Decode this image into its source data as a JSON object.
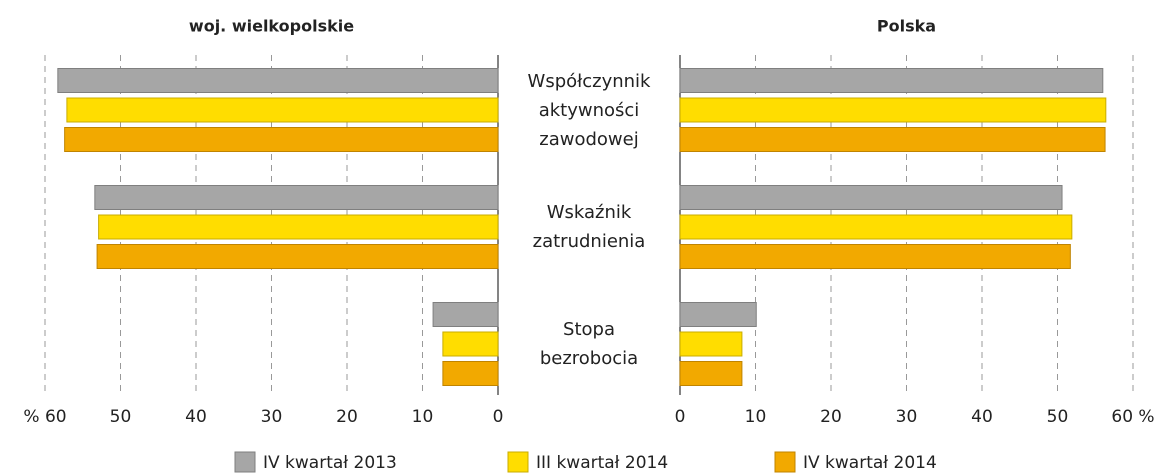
{
  "chart_data": [
    {
      "type": "bar",
      "orientation": "horizontal",
      "reversed": true,
      "title": "woj. wielkopolskie",
      "categories": [
        "Współczynnik\naktywności\nzawodowej",
        "Wskaźnik\nzatrudnienia",
        "Stopa\nbezrobocia"
      ],
      "series": [
        {
          "name": "IV kwartał 2013",
          "color": "#a6a6a6",
          "values": [
            58.3,
            53.4,
            8.6
          ]
        },
        {
          "name": "III kwartał 2014",
          "color": "#ffdd00",
          "values": [
            57.1,
            52.9,
            7.3
          ]
        },
        {
          "name": "IV kwartał 2014",
          "color": "#f2a900",
          "values": [
            57.4,
            53.1,
            7.3
          ]
        }
      ],
      "xlim": [
        0,
        60
      ],
      "xticks": [
        0,
        10,
        20,
        30,
        40,
        50,
        {
          "value": 60,
          "label": "% 60"
        }
      ],
      "grid": true
    },
    {
      "type": "bar",
      "orientation": "horizontal",
      "reversed": false,
      "title": "Polska",
      "series": [
        {
          "color": "#a6a6a6",
          "values": [
            56.0,
            50.6,
            10.1
          ]
        },
        {
          "color": "#ffdd00",
          "values": [
            56.4,
            51.9,
            8.2
          ]
        },
        {
          "color": "#f2a900",
          "values": [
            56.3,
            51.7,
            8.2
          ]
        }
      ],
      "xlim": [
        0,
        60
      ],
      "xticks": [
        0,
        10,
        20,
        30,
        40,
        50,
        {
          "value": 60,
          "label": "60 %"
        }
      ],
      "grid": true
    }
  ]
}
